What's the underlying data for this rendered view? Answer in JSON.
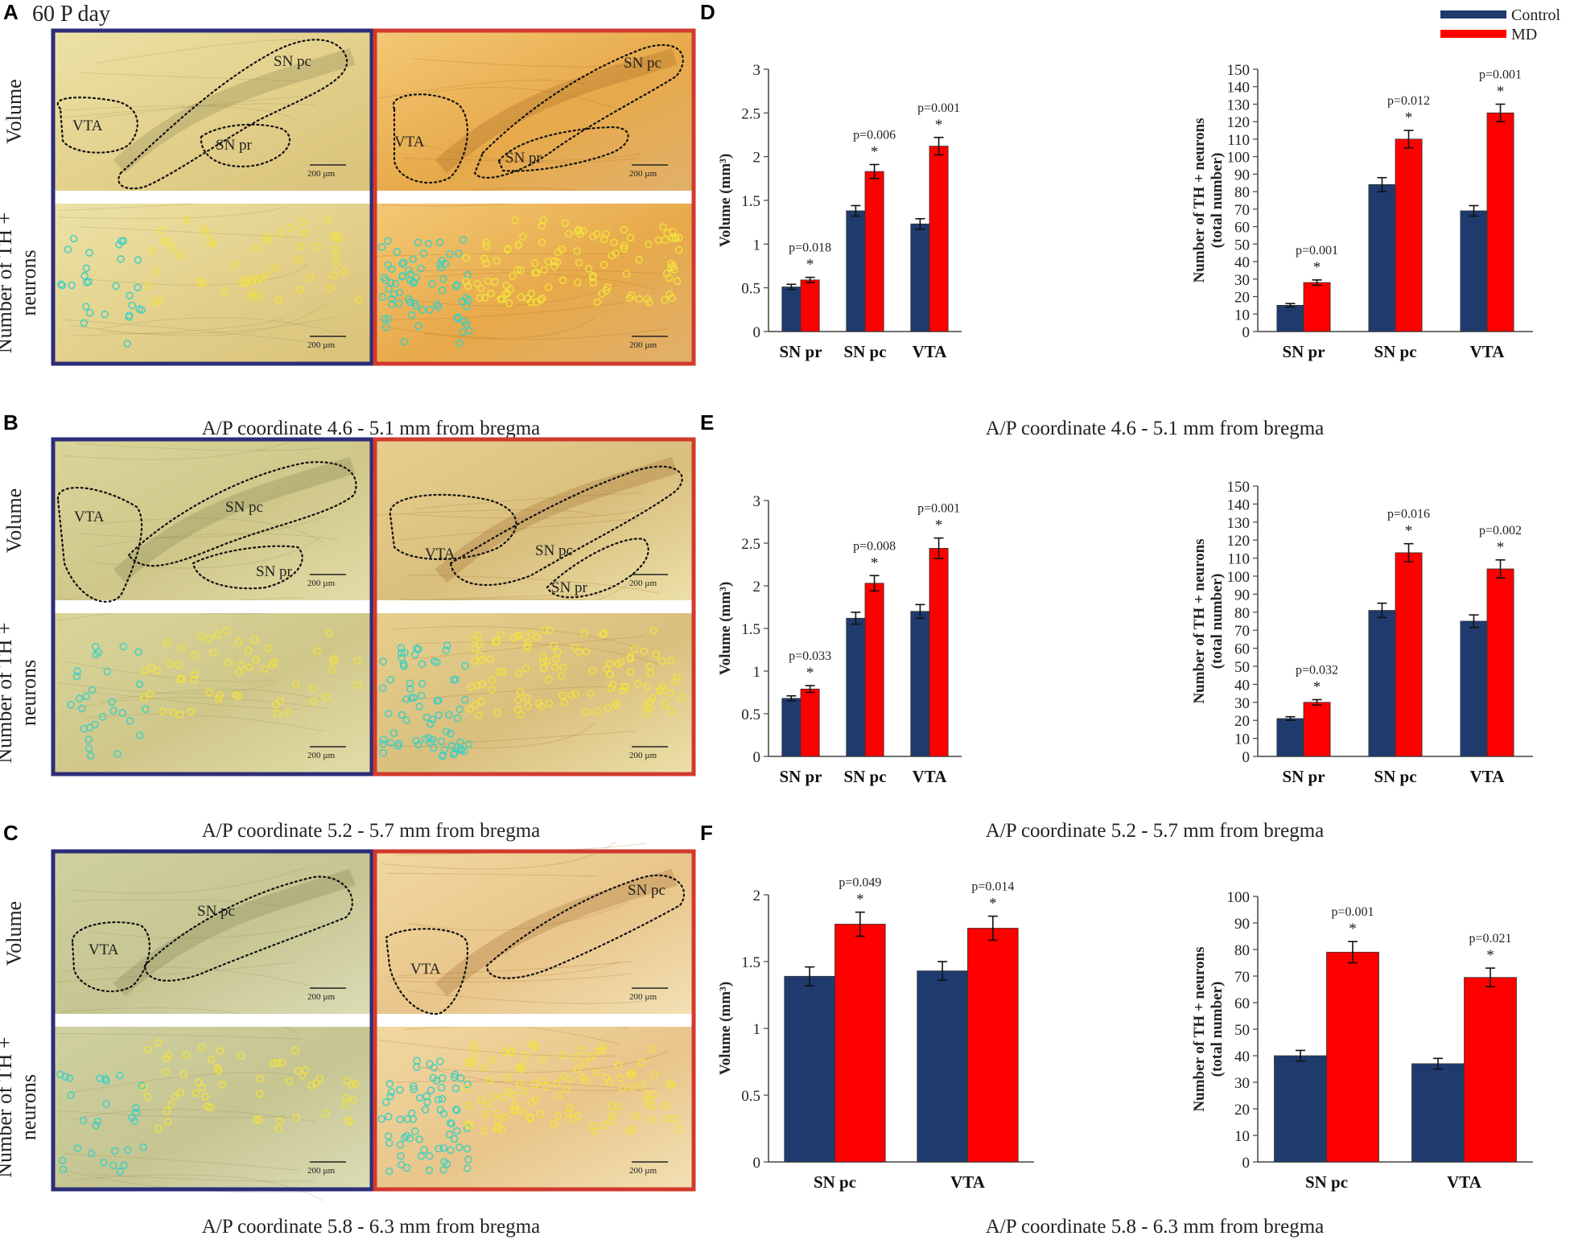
{
  "figure_title": "60 P day",
  "legend": {
    "items": [
      {
        "label": "Control",
        "color": "#1f3b6e"
      },
      {
        "label": "MD",
        "color": "#ff0000"
      }
    ]
  },
  "colors": {
    "control": "#1f3b6e",
    "md": "#ff0000",
    "control_frame": "#2d2d7a",
    "md_frame": "#d23a2e",
    "tissue_light": "#e6d79a",
    "tissue_md": "#e8b65a",
    "cells_cyan": "#3ccfc2",
    "cells_yellow": "#f2e23c"
  },
  "micro_panels": [
    {
      "letter": "A",
      "row_label_top": "Volume",
      "row_label_bottom": [
        "Number of TH +",
        "neurons"
      ],
      "scale_label": "200 µm",
      "caption": "A/P coordinate 4.6 - 5.1 mm from bregma",
      "control_regions": [
        "VTA",
        "SN pc",
        "SN pr"
      ],
      "md_regions": [
        "VTA",
        "SN pc",
        "SN pr"
      ]
    },
    {
      "letter": "B",
      "row_label_top": "Volume",
      "row_label_bottom": [
        "Number of TH +",
        "neurons"
      ],
      "scale_label": "200 µm",
      "caption": "A/P coordinate 5.2 - 5.7 mm from bregma",
      "control_regions": [
        "VTA",
        "SN pc",
        "SN pr"
      ],
      "md_regions": [
        "VTA",
        "SN pc",
        "SN pr"
      ]
    },
    {
      "letter": "C",
      "row_label_top": "Volume",
      "row_label_bottom": [
        "Number of TH +",
        "neurons"
      ],
      "scale_label": "200 µm",
      "caption": "A/P coordinate 5.8 - 6.3 mm from bregma",
      "control_regions": [
        "VTA",
        "SN pc"
      ],
      "md_regions": [
        "VTA",
        "SN pc"
      ]
    }
  ],
  "chart_data": [
    {
      "panel": "D",
      "type": "bar",
      "ylabel": "Volume (mm³)",
      "ylim": [
        0,
        3
      ],
      "yticks": [
        0,
        0.5,
        1,
        1.5,
        2,
        2.5,
        3
      ],
      "categories": [
        "SN pr",
        "SN pc",
        "VTA"
      ],
      "series": [
        {
          "name": "Control",
          "values": [
            0.51,
            1.38,
            1.23
          ],
          "errors": [
            0.03,
            0.06,
            0.06
          ]
        },
        {
          "name": "MD",
          "values": [
            0.59,
            1.83,
            2.12
          ],
          "errors": [
            0.03,
            0.08,
            0.1
          ]
        }
      ],
      "annotations": [
        "p=0.018",
        "p=0.006",
        "p=0.001"
      ],
      "caption": "A/P coordinate 4.6 - 5.1 mm from bregma"
    },
    {
      "panel": "D",
      "type": "bar",
      "ylabel": "Number of TH + neurons",
      "ylabel2": "(total number)",
      "ylim": [
        0,
        150
      ],
      "yticks": [
        0,
        10,
        20,
        30,
        40,
        50,
        60,
        70,
        80,
        90,
        100,
        110,
        120,
        130,
        140,
        150
      ],
      "categories": [
        "SN pr",
        "SN pc",
        "VTA"
      ],
      "series": [
        {
          "name": "Control",
          "values": [
            15,
            84,
            69
          ],
          "errors": [
            1,
            4,
            3
          ]
        },
        {
          "name": "MD",
          "values": [
            28,
            110,
            125
          ],
          "errors": [
            1.5,
            5,
            5
          ]
        }
      ],
      "annotations": [
        "p=0.001",
        "p=0.012",
        "p=0.001"
      ]
    },
    {
      "panel": "E",
      "type": "bar",
      "ylabel": "Volume (mm³)",
      "ylim": [
        0,
        3
      ],
      "yticks": [
        0,
        0.5,
        1,
        1.5,
        2,
        2.5,
        3
      ],
      "categories": [
        "SN pr",
        "SN pc",
        "VTA"
      ],
      "series": [
        {
          "name": "Control",
          "values": [
            0.68,
            1.62,
            1.7
          ],
          "errors": [
            0.03,
            0.07,
            0.08
          ]
        },
        {
          "name": "MD",
          "values": [
            0.79,
            2.03,
            2.44
          ],
          "errors": [
            0.04,
            0.09,
            0.12
          ]
        }
      ],
      "annotations": [
        "p=0.033",
        "p=0.008",
        "p=0.001"
      ],
      "caption": "A/P coordinate 5.2 - 5.7 mm from bregma"
    },
    {
      "panel": "E",
      "type": "bar",
      "ylabel": "Number of TH + neurons",
      "ylabel2": "(total number)",
      "ylim": [
        0,
        150
      ],
      "yticks": [
        0,
        10,
        20,
        30,
        40,
        50,
        60,
        70,
        80,
        90,
        100,
        110,
        120,
        130,
        140,
        150
      ],
      "categories": [
        "SN pr",
        "SN pc",
        "VTA"
      ],
      "series": [
        {
          "name": "Control",
          "values": [
            21,
            81,
            75
          ],
          "errors": [
            1,
            4,
            3.5
          ]
        },
        {
          "name": "MD",
          "values": [
            30,
            113,
            104
          ],
          "errors": [
            1.5,
            5,
            5
          ]
        }
      ],
      "annotations": [
        "p=0.032",
        "p=0.016",
        "p=0.002"
      ]
    },
    {
      "panel": "F",
      "type": "bar",
      "ylabel": "Volume (mm³)",
      "ylim": [
        0,
        2
      ],
      "yticks": [
        0,
        0.5,
        1,
        1.5,
        2
      ],
      "categories": [
        "SN pc",
        "VTA"
      ],
      "series": [
        {
          "name": "Control",
          "values": [
            1.39,
            1.43
          ],
          "errors": [
            0.07,
            0.07
          ]
        },
        {
          "name": "MD",
          "values": [
            1.78,
            1.75
          ],
          "errors": [
            0.09,
            0.09
          ]
        }
      ],
      "annotations": [
        "p=0.049",
        "p=0.014"
      ],
      "caption": "A/P coordinate 5.8 - 6.3 mm from bregma"
    },
    {
      "panel": "F",
      "type": "bar",
      "ylabel": "Number of TH + neurons",
      "ylabel2": "(total number)",
      "ylim": [
        0,
        100
      ],
      "yticks": [
        0,
        10,
        20,
        30,
        40,
        50,
        60,
        70,
        80,
        90,
        100
      ],
      "categories": [
        "SN pc",
        "VTA"
      ],
      "series": [
        {
          "name": "Control",
          "values": [
            40,
            37
          ],
          "errors": [
            2,
            2
          ]
        },
        {
          "name": "MD",
          "values": [
            79,
            69.5
          ],
          "errors": [
            4,
            3.5
          ]
        }
      ],
      "annotations": [
        "p=0.001",
        "p=0.021"
      ]
    }
  ]
}
